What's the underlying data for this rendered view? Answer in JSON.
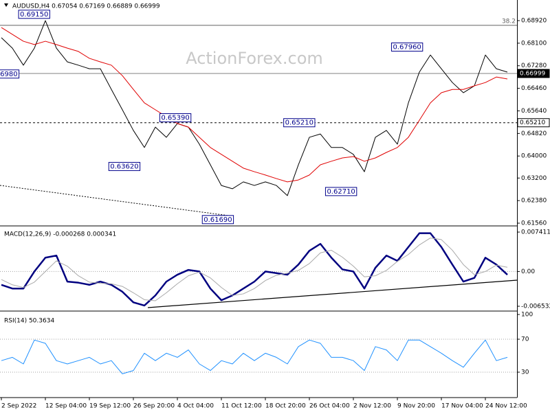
{
  "chart_data": [
    {
      "type": "line",
      "title": "AUDUSD,H4 0.67054 0.67169 0.66889 0.66999",
      "watermark": "ActionForex.com",
      "ylim": [
        0.61485,
        0.69669
      ],
      "yticks": [
        {
          "value": 0.6892,
          "label": "0.68920"
        },
        {
          "value": 0.681,
          "label": "0.68100"
        },
        {
          "value": 0.6728,
          "label": "0.67280"
        },
        {
          "value": 0.6646,
          "label": "0.66460"
        },
        {
          "value": 0.6564,
          "label": "0.65640"
        },
        {
          "value": 0.6482,
          "label": "0.64820"
        },
        {
          "value": 0.64,
          "label": "0.64000"
        },
        {
          "value": 0.632,
          "label": "0.63200"
        },
        {
          "value": 0.6238,
          "label": "0.62380"
        },
        {
          "value": 0.6156,
          "label": "0.61560"
        }
      ],
      "series": [
        {
          "color": "#000000",
          "width": 1,
          "values": [
            0.683,
            0.6792,
            0.673,
            0.6792,
            0.6892,
            0.6792,
            0.6742,
            0.673,
            0.6717,
            0.6717,
            0.6642,
            0.6568,
            0.6493,
            0.6431,
            0.6505,
            0.6468,
            0.6518,
            0.6505,
            0.6443,
            0.6368,
            0.6293,
            0.6281,
            0.6306,
            0.6293,
            0.6306,
            0.6293,
            0.6256,
            0.6368,
            0.6468,
            0.648,
            0.6431,
            0.6431,
            0.6406,
            0.6343,
            0.6468,
            0.6493,
            0.6443,
            0.6593,
            0.6705,
            0.6767,
            0.6717,
            0.6667,
            0.663,
            0.6655,
            0.6767,
            0.6717,
            0.6705
          ]
        },
        {
          "color": "#e00000",
          "width": 1,
          "values": [
            0.6867,
            0.6842,
            0.6817,
            0.6805,
            0.6817,
            0.6805,
            0.6792,
            0.678,
            0.6755,
            0.6742,
            0.673,
            0.6692,
            0.6642,
            0.6593,
            0.6568,
            0.6543,
            0.6518,
            0.6505,
            0.6468,
            0.6431,
            0.6406,
            0.6381,
            0.6356,
            0.6343,
            0.6331,
            0.6318,
            0.6306,
            0.6313,
            0.6331,
            0.6368,
            0.6381,
            0.6393,
            0.6398,
            0.6381,
            0.6393,
            0.6413,
            0.6431,
            0.6468,
            0.653,
            0.6593,
            0.663,
            0.6642,
            0.6642,
            0.6655,
            0.6667,
            0.6687,
            0.668
          ]
        }
      ],
      "fib_line": {
        "label": "38.2",
        "value": 0.6875
      },
      "price_lines": [
        {
          "value": 0.66999,
          "label": "0.66999",
          "style": "solid"
        },
        {
          "value": 0.6521,
          "label": "0.65210",
          "style": "dashed"
        }
      ],
      "annotations": [
        {
          "label": "0.69150",
          "value": 0.6915,
          "x": 4.4,
          "align": "right"
        },
        {
          "label": "6980",
          "value": 0.6698,
          "x": 1.6,
          "align": "right"
        },
        {
          "label": "0.65390",
          "value": 0.6539,
          "x": 14.4,
          "align": "left"
        },
        {
          "label": "0.63620",
          "value": 0.6362,
          "x": 12.6,
          "align": "right"
        },
        {
          "label": "0.61690",
          "value": 0.6169,
          "x": 21.1,
          "align": "right"
        },
        {
          "label": "0.65210",
          "value": 0.6521,
          "x": 28.5,
          "align": "right"
        },
        {
          "label": "0.62710",
          "value": 0.6271,
          "x": 32.3,
          "align": "right"
        },
        {
          "label": "0.67960",
          "value": 0.6796,
          "x": 38.3,
          "align": "right"
        }
      ]
    },
    {
      "type": "line",
      "title": "MACD(12,26,9) -0.000268 0.000341",
      "ylim": [
        -0.007307,
        0.008186
      ],
      "yticks": [
        0.007411,
        {
          "value": 0,
          "label": "0.00"
        },
        -0.006532
      ],
      "level_lines": [
        0
      ],
      "series": [
        {
          "color": "#000080",
          "width": 2.5,
          "values": [
            -0.0025,
            -0.0032,
            -0.0032,
            0.0,
            0.0026,
            0.003,
            -0.0019,
            -0.0021,
            -0.0025,
            -0.0019,
            -0.0025,
            -0.0038,
            -0.0058,
            -0.0064,
            -0.0045,
            -0.0019,
            -0.0006,
            0.0003,
            0.0,
            -0.0032,
            -0.0054,
            -0.0045,
            -0.0032,
            -0.0019,
            0.0,
            -0.0003,
            -0.0006,
            0.0013,
            0.0039,
            0.0052,
            0.0026,
            0.0004,
            0.0,
            -0.0032,
            0.0007,
            0.003,
            0.002,
            0.0046,
            0.0072,
            0.0072,
            0.0046,
            0.0013,
            -0.0019,
            -0.0012,
            0.0026,
            0.0013,
            -0.0006
          ]
        },
        {
          "color": "#a9a9a9",
          "width": 1,
          "values": [
            -0.0015,
            -0.0025,
            -0.003,
            -0.002,
            0.0,
            0.002,
            0.001,
            -0.0008,
            -0.002,
            -0.0022,
            -0.0023,
            -0.0028,
            -0.004,
            -0.0053,
            -0.0055,
            -0.004,
            -0.0023,
            -0.0008,
            -0.0001,
            -0.0012,
            -0.003,
            -0.0045,
            -0.0042,
            -0.0032,
            -0.0017,
            -0.0007,
            -0.0003,
            0.0002,
            0.0015,
            0.0035,
            0.004,
            0.0027,
            0.001,
            -0.001,
            -0.0008,
            0.0002,
            0.0019,
            0.0032,
            0.005,
            0.0063,
            0.006,
            0.004,
            0.0013,
            -0.0006,
            0.0,
            0.0012,
            0.0008
          ]
        }
      ]
    },
    {
      "type": "line",
      "title": "RSI(14) 50.3634",
      "ylim": [
        0,
        100
      ],
      "yticks": [
        100,
        70,
        30
      ],
      "level_lines": [
        70,
        30
      ],
      "categories": [
        "2 Sep 2022",
        null,
        null,
        null,
        "12 Sep 04:00",
        null,
        null,
        null,
        "19 Sep 12:00",
        null,
        null,
        null,
        "26 Sep 20:00",
        null,
        null,
        null,
        "4 Oct 04:00",
        null,
        null,
        null,
        "11 Oct 12:00",
        null,
        null,
        null,
        "18 Oct 20:00",
        null,
        null,
        null,
        "26 Oct 04:00",
        null,
        null,
        null,
        "2 Nov 12:00",
        null,
        null,
        null,
        "9 Nov 20:00",
        null,
        null,
        null,
        "17 Nov 04:00",
        null,
        null,
        null,
        "24 Nov 12:00",
        null,
        null
      ],
      "series": [
        {
          "color": "#1e90ff",
          "width": 1,
          "values": [
            44,
            48,
            40,
            69,
            65,
            44,
            40,
            44,
            48,
            40,
            44,
            28,
            32,
            53,
            44,
            53,
            48,
            57,
            40,
            32,
            44,
            40,
            53,
            44,
            53,
            48,
            40,
            61,
            69,
            65,
            48,
            48,
            44,
            32,
            61,
            57,
            44,
            69,
            69,
            61,
            53,
            44,
            36,
            53,
            69,
            44,
            48
          ]
        }
      ]
    }
  ]
}
